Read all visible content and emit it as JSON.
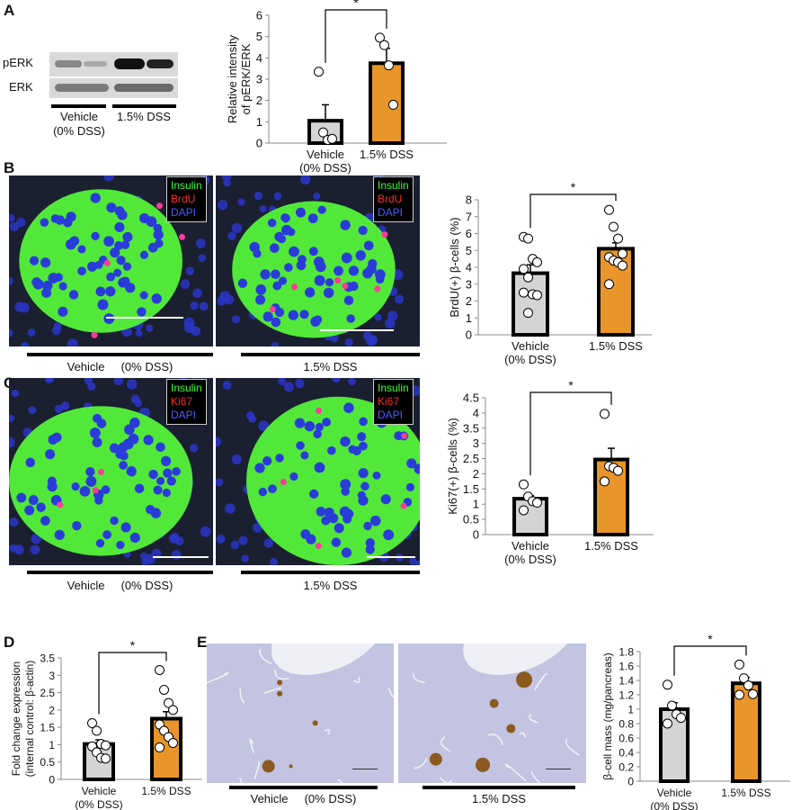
{
  "panels": {
    "A": {
      "label": "A",
      "blot_rows": [
        "pERK",
        "ERK"
      ],
      "groups": [
        "Vehicle\n(0% DSS)",
        "1.5% DSS"
      ]
    },
    "B": {
      "label": "B",
      "legend": [
        "Insulin",
        "BrdU",
        "DAPI"
      ],
      "captions": [
        "Vehicle     (0% DSS)",
        "1.5% DSS"
      ]
    },
    "C": {
      "label": "C",
      "legend": [
        "Insulin",
        "Ki67",
        "DAPI"
      ],
      "captions": [
        "Vehicle     (0% DSS)",
        "1.5% DSS"
      ]
    },
    "D": {
      "label": "D"
    },
    "E": {
      "label": "E",
      "captions": [
        "Vehicle     (0% DSS)",
        "1.5% DSS"
      ]
    }
  },
  "colors": {
    "vehicle_bar": "#d4d4d4",
    "dss_bar": "#e8962a",
    "insulin": "#3bff3b",
    "brdu_ki67": "#ff2a2a",
    "dapi": "#4a5cff"
  },
  "chart_data": [
    {
      "id": "A",
      "type": "bar",
      "categories": [
        "Vehicle\n(0% DSS)",
        "1.5% DSS"
      ],
      "ylabel": [
        "Relative intensity",
        "of pERK/ERK"
      ],
      "ylim": [
        0,
        6
      ],
      "yticks": [
        "0",
        "1",
        "2",
        "3",
        "4",
        "5",
        "6"
      ],
      "series": [
        {
          "values": [
            1.05,
            3.75
          ],
          "errors": [
            0.75,
            0.7
          ]
        }
      ],
      "points": [
        [
          3.35,
          0.5,
          0.15,
          0.2
        ],
        [
          4.95,
          4.6,
          3.65,
          1.8
        ]
      ],
      "significance": "*"
    },
    {
      "id": "B",
      "type": "bar",
      "categories": [
        "Vehicle\n(0% DSS)",
        "1.5% DSS"
      ],
      "ylabel": [
        "BrdU(+) β-cells (%)"
      ],
      "ylim": [
        0,
        8
      ],
      "yticks": [
        "0",
        "1",
        "2",
        "3",
        "4",
        "5",
        "6",
        "7",
        "8"
      ],
      "series": [
        {
          "values": [
            3.65,
            5.1
          ],
          "errors": [
            0.5,
            0.35
          ]
        }
      ],
      "points": [
        [
          5.8,
          5.7,
          4.5,
          4.3,
          3.9,
          3.4,
          2.4,
          2.35,
          2.5,
          1.3
        ],
        [
          7.4,
          6.4,
          5.7,
          4.8,
          4.6,
          4.4,
          4.3,
          4.1,
          3.0
        ]
      ],
      "significance": "*"
    },
    {
      "id": "C",
      "type": "bar",
      "categories": [
        "Vehicle\n(0% DSS)",
        "1.5% DSS"
      ],
      "ylabel": [
        "Ki67(+) β-cells (%)"
      ],
      "ylim": [
        0,
        4.5
      ],
      "yticks": [
        "0",
        "0.5",
        "1",
        "1.5",
        "2",
        "2.5",
        "3",
        "3.5",
        "4",
        "4.5"
      ],
      "series": [
        {
          "values": [
            1.18,
            2.47
          ],
          "errors": [
            0.1,
            0.37
          ]
        }
      ],
      "points": [
        [
          1.65,
          1.25,
          1.1,
          1.05,
          0.8
        ],
        [
          3.97,
          2.25,
          2.2,
          2.1,
          1.75
        ]
      ],
      "significance": "*"
    },
    {
      "id": "D",
      "type": "bar",
      "categories": [
        "Vehicle\n(0% DSS)",
        "1.5% DSS"
      ],
      "ylabel": [
        "Fold change expression",
        "(internal control: β-actin)"
      ],
      "ylim": [
        0,
        3.5
      ],
      "yticks": [
        "0",
        "0.5",
        "1",
        "1.5",
        "2",
        "2.5",
        "3",
        "3.5"
      ],
      "series": [
        {
          "values": [
            1.02,
            1.75
          ],
          "errors": [
            0.12,
            0.2
          ]
        }
      ],
      "points": [
        [
          1.62,
          1.4,
          1.02,
          0.98,
          0.95,
          0.78,
          0.62,
          0.6
        ],
        [
          3.15,
          2.58,
          2.2,
          2.0,
          1.58,
          1.4,
          1.22,
          1.05,
          0.92
        ]
      ],
      "significance": "*"
    },
    {
      "id": "E",
      "type": "bar",
      "categories": [
        "Vehicle\n(0% DSS)",
        "1.5% DSS"
      ],
      "ylabel": [
        "β-cell mass (mg/pancreas)"
      ],
      "ylim": [
        0,
        1.8
      ],
      "yticks": [
        "0",
        "0.2",
        "0.4",
        "0.6",
        "0.8",
        "1",
        "1.2",
        "1.4",
        "1.6",
        "1.8"
      ],
      "series": [
        {
          "values": [
            1.0,
            1.36
          ],
          "errors": [
            0.09,
            0.08
          ]
        }
      ],
      "points": [
        [
          1.34,
          1.05,
          0.93,
          0.88,
          0.8
        ],
        [
          1.62,
          1.43,
          1.33,
          1.21,
          1.2
        ]
      ],
      "significance": "*"
    }
  ]
}
